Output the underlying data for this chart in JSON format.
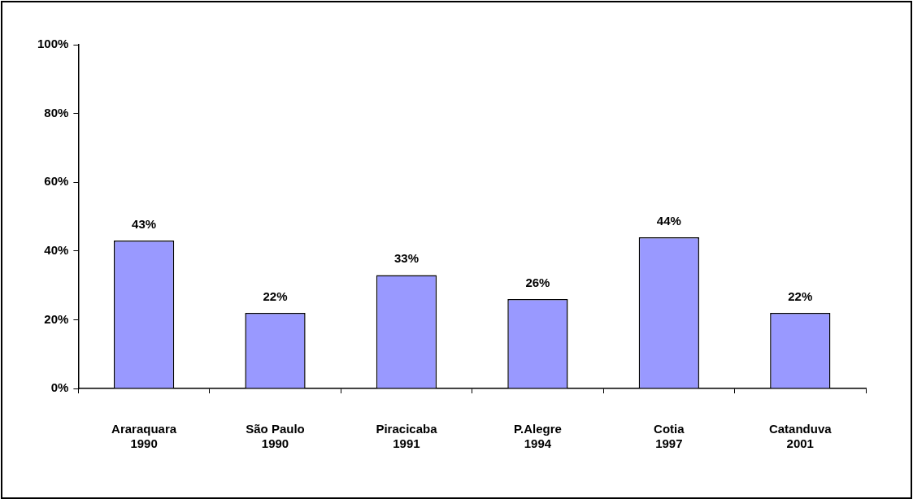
{
  "chart_data": {
    "type": "bar",
    "categories": [
      "Araraquara\n1990",
      "São Paulo\n1990",
      "Piracicaba\n1991",
      "P.Alegre\n1994",
      "Cotia\n1997",
      "Catanduva\n2001"
    ],
    "values": [
      43,
      22,
      33,
      26,
      44,
      22
    ],
    "value_labels": [
      "43%",
      "22%",
      "33%",
      "26%",
      "44%",
      "22%"
    ],
    "color": "#9999ff",
    "ylim": [
      0,
      100
    ],
    "yticks": [
      {
        "value": 0,
        "label": "0%"
      },
      {
        "value": 20,
        "label": "20%"
      },
      {
        "value": 40,
        "label": "40%"
      },
      {
        "value": 60,
        "label": "60%"
      },
      {
        "value": 80,
        "label": "80%"
      },
      {
        "value": 100,
        "label": "100%"
      }
    ],
    "grid": false,
    "legend": false
  }
}
